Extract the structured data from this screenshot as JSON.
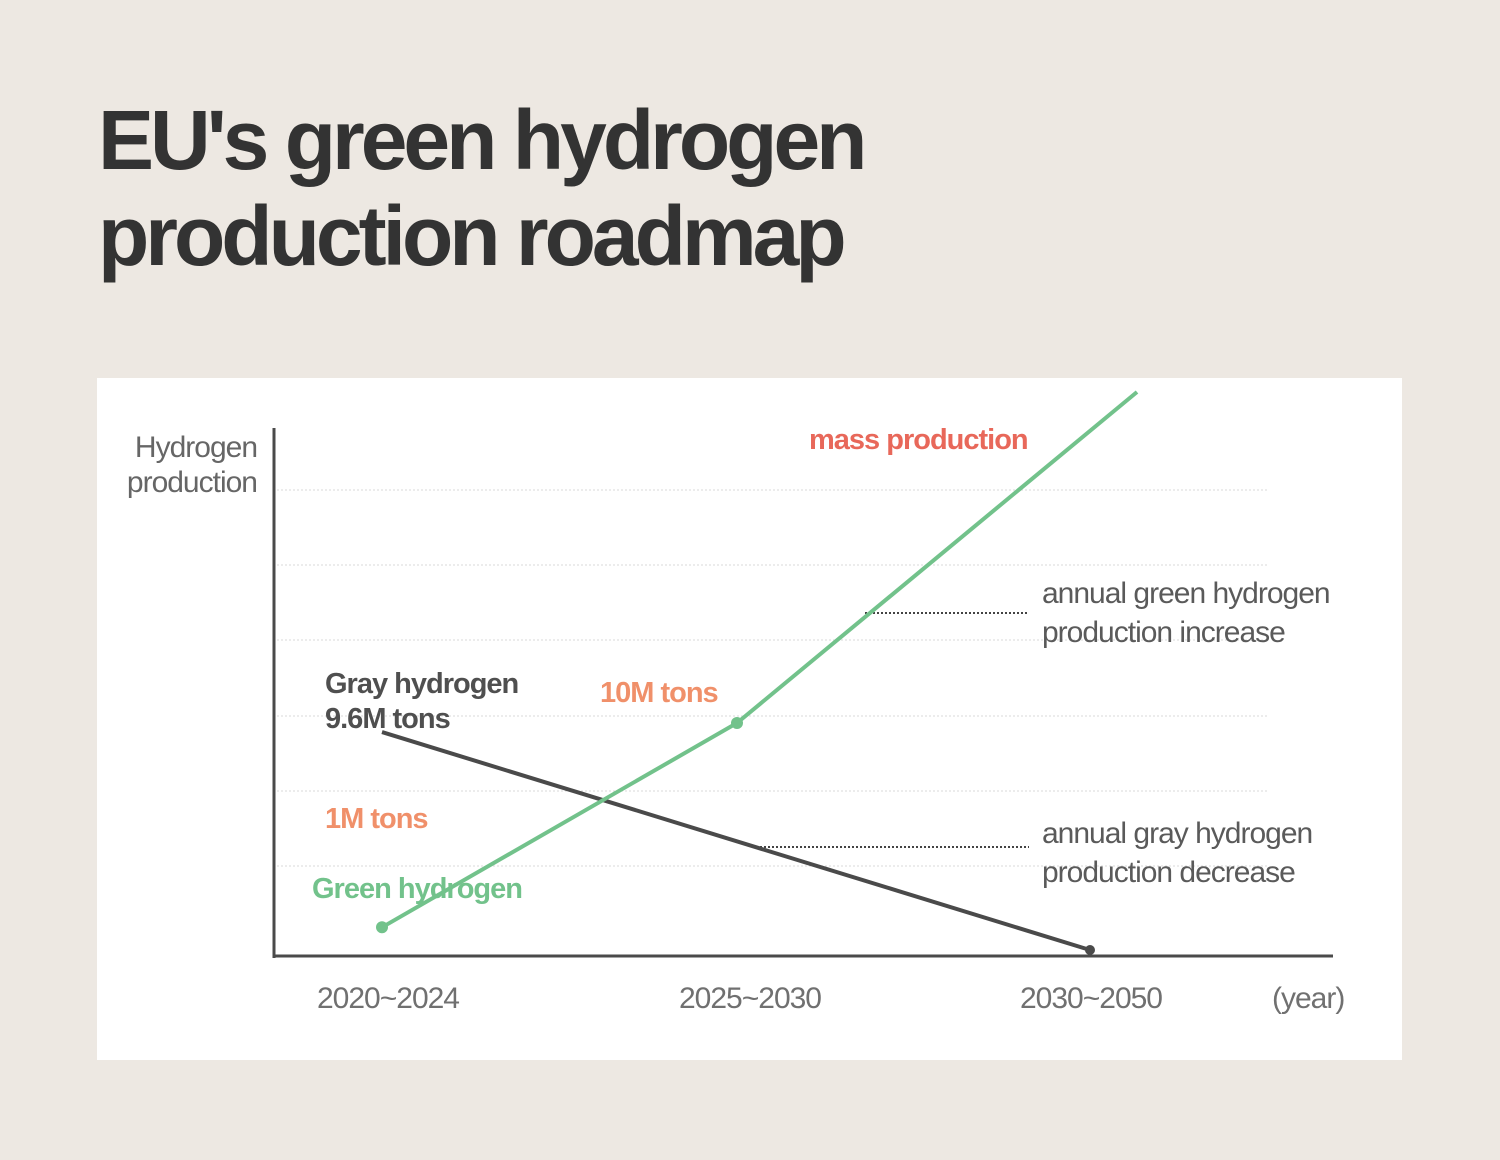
{
  "title": {
    "line1": "EU's green hydrogen",
    "line2": "production roadmap"
  },
  "colors": {
    "background": "#ede8e2",
    "card": "#ffffff",
    "green": "#72c28b",
    "gray": "#4a4a4a",
    "orange": "#f0906a",
    "red": "#e8685a"
  },
  "chart_data": {
    "type": "line",
    "title": "EU's green hydrogen production roadmap",
    "ylabel": "Hydrogen production",
    "xunit": "(year)",
    "categories": [
      "2020~2024",
      "2025~2030",
      "2030~2050"
    ],
    "grid": true,
    "series": [
      {
        "name": "Green hydrogen",
        "values": [
          1,
          10,
          null
        ],
        "value_labels": [
          "1M tons",
          "10M tons"
        ],
        "end_label": "mass production"
      },
      {
        "name": "Gray hydrogen",
        "values": [
          9.6,
          null,
          0
        ],
        "value_labels": [
          "9.6M tons"
        ]
      }
    ],
    "labels": {
      "green_start": "1M tons",
      "green_mid": "10M tons",
      "green_end": "mass production",
      "green_name": "Green hydrogen",
      "gray_name": "Gray hydrogen",
      "gray_start": "9.6M tons"
    },
    "annotations": {
      "green": [
        "annual green hydrogen",
        "production increase"
      ],
      "gray": [
        "annual gray hydrogen",
        "production decrease"
      ]
    }
  }
}
